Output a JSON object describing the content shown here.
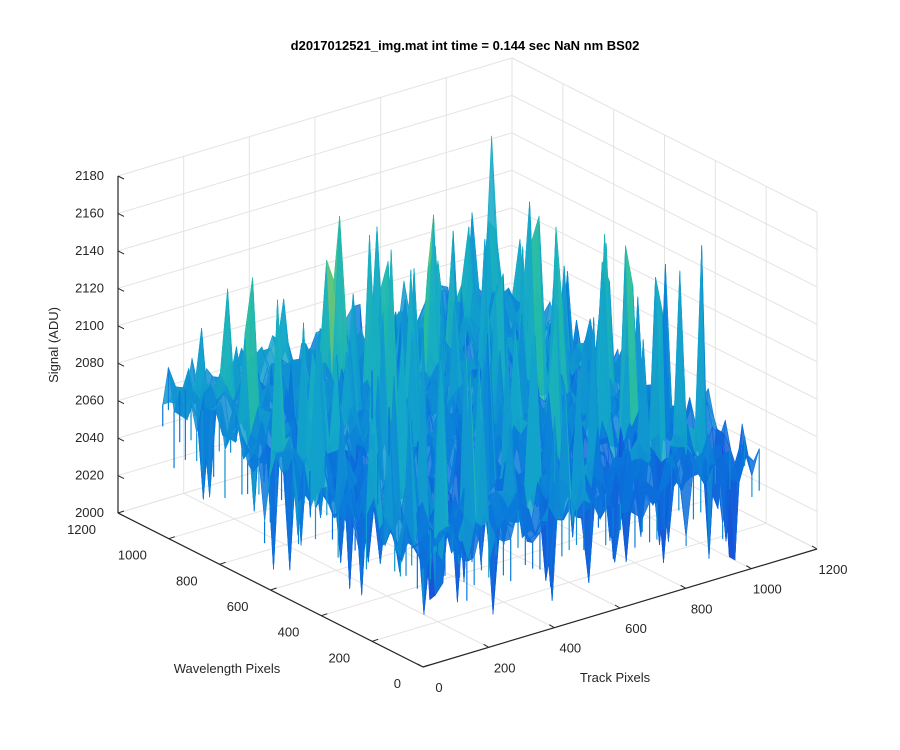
{
  "chart_data": {
    "type": "surface",
    "title": "d2017012521_img.mat int time = 0.144 sec  NaN nm BS02",
    "xlabel": "Track Pixels",
    "ylabel": "Wavelength Pixels",
    "zlabel": "Signal (ADU)",
    "xlim": [
      0,
      1200
    ],
    "ylim": [
      0,
      1200
    ],
    "zlim": [
      2000,
      2180
    ],
    "x_ticks": [
      "0",
      "200",
      "400",
      "600",
      "800",
      "1000",
      "1200"
    ],
    "y_ticks": [
      "0",
      "200",
      "400",
      "600",
      "800",
      "1000",
      "1200"
    ],
    "z_ticks": [
      "2000",
      "2020",
      "2040",
      "2060",
      "2080",
      "2100",
      "2120",
      "2140",
      "2160",
      "2180"
    ],
    "grid": true,
    "colormap": "parula",
    "colors": {
      "low": "#0a72d8",
      "mid": "#1db3b0",
      "high": "#e8d23a"
    },
    "data_extent": {
      "x": [
        0,
        1024
      ],
      "y": [
        0,
        1024
      ]
    },
    "signal_summary": {
      "min": 2005,
      "typical_low": 2030,
      "typical_high": 2110,
      "max": 2160
    }
  }
}
